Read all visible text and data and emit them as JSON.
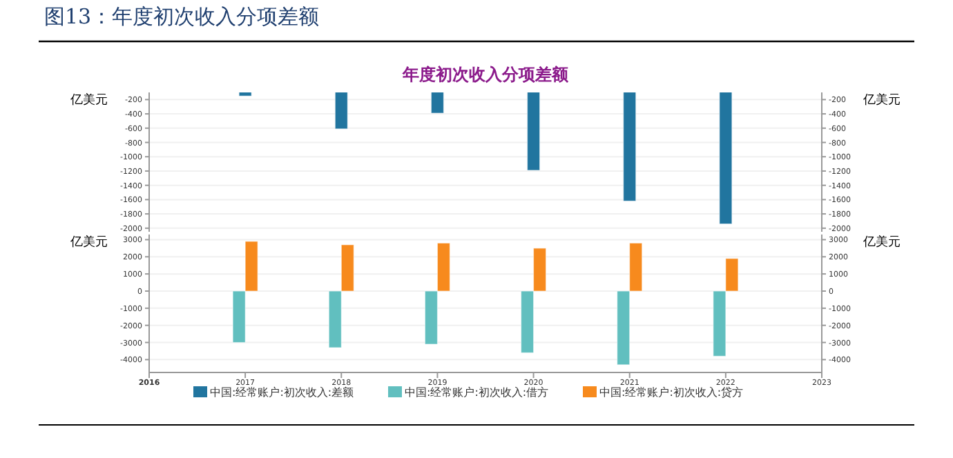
{
  "chart_data": [
    {
      "type": "bar",
      "title": "图13：年度初次收入分项差额",
      "subtitle": "年度初次收入分项差额",
      "ylabel": "亿美元",
      "y2label": "亿美元",
      "x": [
        2017,
        2018,
        2019,
        2020,
        2021,
        2022
      ],
      "xlim": [
        2016,
        2023
      ],
      "ylim": [
        -2050,
        -100
      ],
      "yticks": [
        -200,
        -400,
        -600,
        -800,
        -1000,
        -1200,
        -1400,
        -1600,
        -1800,
        -2000
      ],
      "y2lim": [
        -2050,
        -100
      ],
      "y2ticks": [
        -200,
        -400,
        -600,
        -800,
        -1000,
        -1200,
        -1400,
        -1600,
        -1800,
        -2000
      ],
      "tick_labels": "y",
      "grid": "y",
      "legend": "bottom",
      "series": [
        {
          "name": "中国:经常账户:初次收入:差额",
          "color": "#21759f",
          "values": [
            -150,
            -610,
            -390,
            -1190,
            -1620,
            -1940
          ]
        }
      ]
    },
    {
      "type": "bar",
      "ylabel": "亿美元",
      "y2label": "亿美元",
      "x": [
        2017,
        2018,
        2019,
        2020,
        2021,
        2022
      ],
      "xlim": [
        2016,
        2023
      ],
      "xticks": [
        2016,
        2017,
        2018,
        2019,
        2020,
        2021,
        2022,
        2023
      ],
      "ylim": [
        -4750,
        3300
      ],
      "yticks": [
        3000,
        2000,
        1000,
        0,
        -1000,
        -2000,
        -3000,
        -4000
      ],
      "y2lim": [
        -4750,
        3300
      ],
      "y2ticks": [
        3000,
        2000,
        1000,
        0,
        -1000,
        -2000,
        -3000,
        -4000
      ],
      "grid": "y",
      "legend": "bottom",
      "series": [
        {
          "name": "中国:经常账户:初次收入:借方",
          "color": "#61bfbf",
          "values": [
            -3000,
            -3300,
            -3100,
            -3600,
            -4300,
            -3800
          ]
        },
        {
          "name": "中国:经常账户:初次收入:贷方",
          "color": "#f78a1d",
          "values": [
            2900,
            2700,
            2800,
            2500,
            2800,
            1900
          ]
        }
      ]
    }
  ]
}
